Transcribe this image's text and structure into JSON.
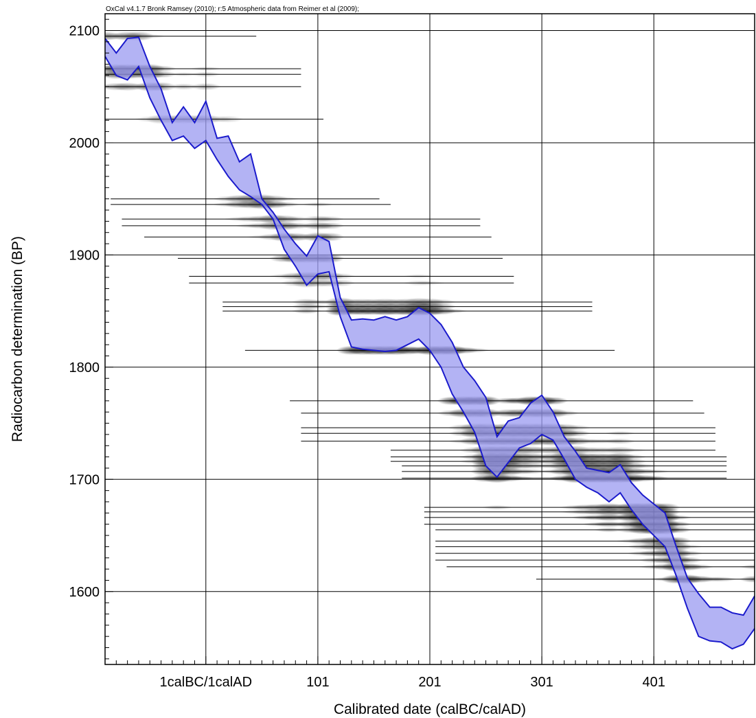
{
  "header": {
    "credit": "OxCal v4.1.7 Bronk Ramsey (2010); r:5 Atmospheric data from Reimer et al (2009);"
  },
  "chart_data": {
    "type": "area",
    "xlabel": "Calibrated date (calBC/calAD)",
    "ylabel": "Radiocarbon determination (BP)",
    "x_unit": "calendar year (negative = BC)",
    "xlim": [
      -90,
      490
    ],
    "ylim": [
      1535,
      2115
    ],
    "grid": true,
    "x_ticks": [
      {
        "value": 0,
        "label": "1calBC/1calAD"
      },
      {
        "value": 100,
        "label": "101"
      },
      {
        "value": 200,
        "label": "201"
      },
      {
        "value": 300,
        "label": "301"
      },
      {
        "value": 400,
        "label": "401"
      }
    ],
    "y_ticks": [
      {
        "value": 1600,
        "label": "1600"
      },
      {
        "value": 1700,
        "label": "1700"
      },
      {
        "value": 1800,
        "label": "1800"
      },
      {
        "value": 1900,
        "label": "1900"
      },
      {
        "value": 2000,
        "label": "2000"
      },
      {
        "value": 2100,
        "label": "2100"
      }
    ],
    "calibration_band": {
      "color": "#1a1acc",
      "fill": "#9a9af0",
      "x": [
        -90,
        -80,
        -70,
        -60,
        -50,
        -40,
        -30,
        -20,
        -10,
        0,
        10,
        20,
        30,
        40,
        50,
        60,
        70,
        80,
        90,
        100,
        110,
        120,
        130,
        140,
        150,
        160,
        170,
        180,
        190,
        200,
        210,
        220,
        230,
        240,
        250,
        260,
        270,
        280,
        290,
        300,
        310,
        320,
        330,
        340,
        350,
        360,
        370,
        380,
        390,
        400,
        410,
        420,
        430,
        440,
        450,
        460,
        470,
        480,
        490
      ],
      "upper": [
        2093,
        2080,
        2093,
        2094,
        2068,
        2048,
        2018,
        2032,
        2018,
        2037,
        2004,
        2006,
        1983,
        1990,
        1950,
        1938,
        1923,
        1910,
        1899,
        1917,
        1912,
        1862,
        1842,
        1843,
        1842,
        1845,
        1842,
        1845,
        1853,
        1848,
        1838,
        1822,
        1800,
        1788,
        1773,
        1738,
        1752,
        1755,
        1768,
        1775,
        1760,
        1738,
        1725,
        1710,
        1708,
        1706,
        1713,
        1697,
        1686,
        1678,
        1670,
        1640,
        1612,
        1598,
        1586,
        1586,
        1581,
        1579,
        1596
      ],
      "lower": [
        2077,
        2060,
        2056,
        2068,
        2040,
        2020,
        2002,
        2006,
        1995,
        2002,
        1985,
        1970,
        1958,
        1952,
        1945,
        1932,
        1905,
        1890,
        1873,
        1883,
        1885,
        1845,
        1818,
        1816,
        1815,
        1814,
        1815,
        1820,
        1825,
        1815,
        1800,
        1776,
        1760,
        1742,
        1712,
        1702,
        1715,
        1728,
        1732,
        1740,
        1735,
        1718,
        1700,
        1693,
        1688,
        1680,
        1688,
        1673,
        1660,
        1650,
        1640,
        1614,
        1585,
        1560,
        1556,
        1555,
        1549,
        1553,
        1567
      ]
    },
    "determinations": {
      "color": "#000000",
      "unit": "BP",
      "bp": [
        2095,
        2066,
        2061,
        2050,
        2021,
        1950,
        1945,
        1932,
        1926,
        1916,
        1897,
        1881,
        1875,
        1858,
        1854,
        1850,
        1815,
        1770,
        1759,
        1746,
        1741,
        1734,
        1726,
        1720,
        1716,
        1712,
        1707,
        1701,
        1675,
        1671,
        1666,
        1660,
        1655,
        1645,
        1640,
        1634,
        1628,
        1622,
        1611
      ],
      "darkness": [
        0.45,
        0.55,
        0.5,
        0.45,
        0.3,
        0.45,
        0.55,
        0.45,
        0.5,
        0.45,
        0.5,
        0.4,
        0.35,
        0.45,
        0.55,
        0.7,
        0.7,
        0.7,
        0.5,
        0.4,
        0.55,
        0.5,
        0.4,
        0.6,
        0.55,
        0.5,
        0.6,
        0.7,
        0.55,
        0.6,
        0.8,
        0.75,
        0.65,
        0.55,
        0.5,
        0.6,
        0.55,
        0.65,
        0.7
      ]
    }
  }
}
